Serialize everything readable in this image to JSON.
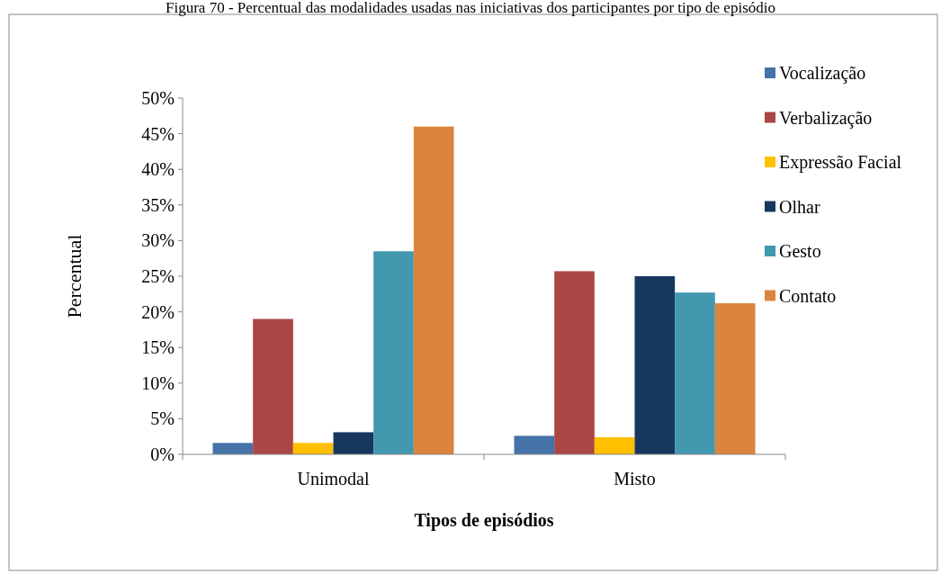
{
  "chart_data": {
    "type": "bar",
    "title": "Figura 70 - Percentual das modalidades usadas nas iniciativas dos participantes por tipo de episódio",
    "xlabel": "Tipos de episódios",
    "ylabel": "Percentual",
    "categories": [
      "Unimodal",
      "Misto"
    ],
    "series": [
      {
        "name": "Vocalização",
        "color": "#4572a7",
        "values": [
          1.6,
          2.6
        ]
      },
      {
        "name": "Verbalização",
        "color": "#aa4643",
        "values": [
          19.0,
          25.7
        ]
      },
      {
        "name": "Expressão Facial",
        "color": "#ffc000",
        "values": [
          1.6,
          2.4
        ]
      },
      {
        "name": "Olhar",
        "color": "#17375e",
        "values": [
          3.1,
          25.0
        ]
      },
      {
        "name": "Gesto",
        "color": "#4198af",
        "values": [
          28.5,
          22.7
        ]
      },
      {
        "name": "Contato",
        "color": "#db843d",
        "values": [
          46.0,
          21.2
        ]
      }
    ],
    "ylim": [
      0,
      50
    ],
    "yticks": [
      {
        "value": 0,
        "label": "0%"
      },
      {
        "value": 5,
        "label": "5%"
      },
      {
        "value": 10,
        "label": "10%"
      },
      {
        "value": 15,
        "label": "15%"
      },
      {
        "value": 20,
        "label": "20%"
      },
      {
        "value": 25,
        "label": "25%"
      },
      {
        "value": 30,
        "label": "30%"
      },
      {
        "value": 35,
        "label": "35%"
      },
      {
        "value": 40,
        "label": "40%"
      },
      {
        "value": 45,
        "label": "45%"
      },
      {
        "value": 50,
        "label": "50%"
      }
    ],
    "grid": false,
    "legend": "right"
  }
}
